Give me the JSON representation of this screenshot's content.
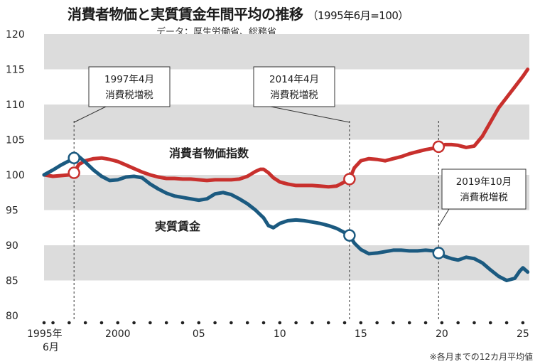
{
  "title": "消費者物価と実質賃金年間平均の推移",
  "subtitle": "（1995年6月=100）",
  "source": "データ：厚生労働省、総務省",
  "footnote": "※各月までの12カ月平均値",
  "colors": {
    "cpi": "#c8302d",
    "wage": "#1b5a80",
    "band": "#dcdcdc"
  },
  "chart_data": {
    "type": "line",
    "title": "消費者物価と実質賃金年間平均の推移",
    "ylim": [
      80,
      120
    ],
    "yticks": [
      80,
      85,
      90,
      95,
      100,
      105,
      110,
      115,
      120
    ],
    "xlim": [
      1995.45,
      2025.4
    ],
    "xticks": [
      {
        "x": 1995.45,
        "label": "1995年",
        "label2": "6月"
      },
      {
        "x": 2000,
        "label": "2000"
      },
      {
        "x": 2005,
        "label": "05"
      },
      {
        "x": 2010,
        "label": "10"
      },
      {
        "x": 2015,
        "label": "15"
      },
      {
        "x": 2020,
        "label": "20"
      },
      {
        "x": 2025,
        "label": "25"
      }
    ],
    "series": [
      {
        "name": "消費者物価指数",
        "color": "#c8302d",
        "x": [
          1995.45,
          1996.0,
          1996.5,
          1997.0,
          1997.3,
          1997.6,
          1998.0,
          1998.5,
          1999.0,
          1999.5,
          2000.0,
          2000.5,
          2001.0,
          2001.5,
          2002.0,
          2002.5,
          2003.0,
          2003.5,
          2004.0,
          2004.5,
          2005.0,
          2005.5,
          2006.0,
          2006.5,
          2007.0,
          2007.5,
          2008.0,
          2008.5,
          2008.8,
          2009.0,
          2009.3,
          2009.6,
          2010.0,
          2010.5,
          2011.0,
          2011.5,
          2012.0,
          2012.5,
          2013.0,
          2013.5,
          2014.0,
          2014.3,
          2014.6,
          2015.0,
          2015.5,
          2016.0,
          2016.5,
          2017.0,
          2017.5,
          2018.0,
          2018.5,
          2019.0,
          2019.5,
          2019.8,
          2020.2,
          2020.6,
          2021.0,
          2021.5,
          2022.0,
          2022.5,
          2023.0,
          2023.5,
          2024.0,
          2024.5,
          2025.0,
          2025.3
        ],
        "values": [
          100.0,
          99.8,
          99.9,
          100.0,
          100.3,
          101.5,
          102.0,
          102.3,
          102.4,
          102.2,
          101.9,
          101.4,
          100.9,
          100.4,
          100.0,
          99.7,
          99.5,
          99.5,
          99.4,
          99.4,
          99.3,
          99.2,
          99.3,
          99.3,
          99.3,
          99.4,
          99.8,
          100.5,
          100.8,
          100.8,
          100.3,
          99.6,
          99.0,
          98.7,
          98.5,
          98.5,
          98.5,
          98.4,
          98.3,
          98.4,
          99.0,
          99.4,
          101.0,
          102.0,
          102.3,
          102.2,
          102.0,
          102.3,
          102.6,
          103.0,
          103.3,
          103.6,
          103.8,
          104.0,
          104.3,
          104.3,
          104.2,
          103.9,
          104.1,
          105.5,
          107.5,
          109.5,
          111.0,
          112.5,
          114.0,
          115.0
        ]
      },
      {
        "name": "実質賃金",
        "color": "#1b5a80",
        "x": [
          1995.45,
          1996.0,
          1996.5,
          1997.0,
          1997.3,
          1997.6,
          1998.0,
          1998.5,
          1999.0,
          1999.5,
          2000.0,
          2000.5,
          2001.0,
          2001.5,
          2002.0,
          2002.5,
          2003.0,
          2003.5,
          2004.0,
          2004.5,
          2005.0,
          2005.5,
          2006.0,
          2006.5,
          2007.0,
          2007.5,
          2008.0,
          2008.5,
          2009.0,
          2009.3,
          2009.6,
          2010.0,
          2010.5,
          2011.0,
          2011.5,
          2012.0,
          2012.5,
          2013.0,
          2013.5,
          2014.0,
          2014.3,
          2014.6,
          2015.0,
          2015.5,
          2016.0,
          2016.5,
          2017.0,
          2017.5,
          2018.0,
          2018.5,
          2019.0,
          2019.5,
          2019.8,
          2020.2,
          2020.6,
          2021.0,
          2021.5,
          2022.0,
          2022.5,
          2023.0,
          2023.5,
          2024.0,
          2024.5,
          2024.8,
          2025.0,
          2025.3
        ],
        "values": [
          100.0,
          100.7,
          101.4,
          102.0,
          102.4,
          102.6,
          101.8,
          100.7,
          99.8,
          99.2,
          99.3,
          99.7,
          99.8,
          99.6,
          98.7,
          98.0,
          97.4,
          97.0,
          96.8,
          96.6,
          96.4,
          96.6,
          97.3,
          97.5,
          97.2,
          96.6,
          95.9,
          95.0,
          93.9,
          92.8,
          92.5,
          93.1,
          93.5,
          93.6,
          93.5,
          93.3,
          93.1,
          92.8,
          92.4,
          91.8,
          91.4,
          90.3,
          89.4,
          88.8,
          88.9,
          89.1,
          89.3,
          89.3,
          89.2,
          89.2,
          89.3,
          89.2,
          88.9,
          88.4,
          88.1,
          87.9,
          88.3,
          88.1,
          87.5,
          86.5,
          85.6,
          85.0,
          85.3,
          86.3,
          86.8,
          86.2
        ]
      }
    ],
    "markers": [
      {
        "x": 1997.3,
        "series": 0
      },
      {
        "x": 1997.3,
        "series": 1
      },
      {
        "x": 2014.3,
        "series": 0
      },
      {
        "x": 2014.3,
        "series": 1
      },
      {
        "x": 2019.8,
        "series": 0
      },
      {
        "x": 2019.8,
        "series": 1
      }
    ],
    "events": [
      {
        "x": 1997.3,
        "line1": "1997年4月",
        "line2": "消費税増税"
      },
      {
        "x": 2014.3,
        "line1": "2014年4月",
        "line2": "消費税増税"
      },
      {
        "x": 2019.8,
        "line1": "2019年10月",
        "line2": "消費税増税"
      }
    ],
    "series_labels": [
      "消費者物価指数",
      "実質賃金"
    ]
  }
}
